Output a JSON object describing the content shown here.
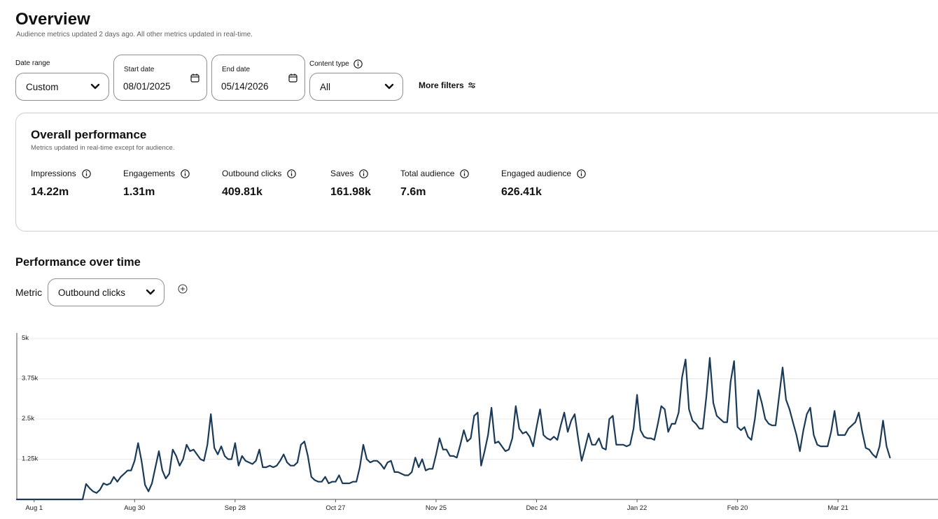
{
  "header": {
    "title": "Overview",
    "subtitle": "Audience metrics updated 2 days ago. All other metrics updated in real-time."
  },
  "filters": {
    "date_range_label": "Date range",
    "date_range_value": "Custom",
    "start_date_label": "Start date",
    "start_date_value": "08/01/2025",
    "end_date_label": "End date",
    "end_date_value": "05/14/2026",
    "content_type_label": "Content type",
    "content_type_value": "All",
    "more_filters_label": "More filters"
  },
  "overall": {
    "title": "Overall performance",
    "subtitle": "Metrics updated in real-time except for audience.",
    "metrics": [
      {
        "label": "Impressions",
        "value": "14.22m"
      },
      {
        "label": "Engagements",
        "value": "1.31m"
      },
      {
        "label": "Outbound clicks",
        "value": "409.81k"
      },
      {
        "label": "Saves",
        "value": "161.98k"
      },
      {
        "label": "Total audience",
        "value": "7.6m"
      },
      {
        "label": "Engaged audience",
        "value": "626.41k"
      }
    ]
  },
  "performance": {
    "title": "Performance over time",
    "metric_label": "Metric",
    "metric_value": "Outbound clicks"
  },
  "colors": {
    "line": "#1b3a57",
    "grid": "#e8e8e8",
    "axis": "#555555",
    "border": "#8e8e8e"
  },
  "icons": [
    "chevron-down-icon",
    "calendar-icon",
    "info-icon",
    "filter-sliders-icon",
    "add-circle-icon"
  ],
  "chart_data": {
    "type": "line",
    "series": [
      {
        "start": "2025-07-27",
        "values": [
          0,
          0,
          0,
          0,
          0,
          0,
          0,
          0,
          0,
          0,
          0,
          0,
          0,
          0,
          0,
          0,
          0,
          0,
          0,
          0,
          480,
          350,
          250,
          200,
          300,
          500,
          450,
          500,
          700,
          550,
          700,
          800,
          900,
          900,
          1200,
          1750,
          1200,
          450,
          250,
          500,
          1000,
          1500,
          900,
          650,
          800,
          1550,
          1350,
          1050,
          1250,
          1700,
          1500,
          1550,
          1400,
          1250,
          1200,
          1700,
          2650,
          1600,
          1400,
          1650,
          1350,
          1250,
          1250,
          1750,
          1050,
          1350,
          1200,
          1150,
          1100,
          1200,
          1550,
          1000,
          1000,
          1050,
          1000,
          1050,
          1200,
          1400,
          1150,
          1050,
          1050,
          1150,
          1700,
          1800,
          1350,
          700,
          600,
          550,
          550,
          700,
          500,
          550,
          550,
          750,
          500,
          500,
          500,
          550,
          550,
          1000,
          1700,
          1250,
          1150,
          1200,
          1200,
          1100,
          950,
          1150,
          1200,
          850,
          850,
          800,
          750,
          750,
          850,
          1300,
          1000,
          1250,
          900,
          950,
          950,
          1400,
          1900,
          1550,
          1550,
          1350,
          1350,
          1300,
          1700,
          2150,
          1800,
          1900,
          2600,
          2700,
          1050,
          1500,
          2000,
          2850,
          1750,
          1800,
          1650,
          1500,
          1550,
          1900,
          2900,
          2200,
          2050,
          2100,
          1950,
          1650,
          2250,
          2800,
          2000,
          1900,
          1850,
          1950,
          1850,
          2300,
          2700,
          2100,
          2450,
          2650,
          1900,
          1200,
          1600,
          2050,
          1700,
          1700,
          1900,
          1600,
          1550,
          2500,
          2600,
          1700,
          1700,
          1700,
          1650,
          1700,
          2200,
          3250,
          2150,
          1950,
          1900,
          1900,
          1850,
          2350,
          2900,
          2800,
          2100,
          2350,
          2350,
          2700,
          3800,
          4350,
          2800,
          2450,
          2350,
          2200,
          2200,
          3200,
          4400,
          3000,
          2600,
          2500,
          2400,
          2400,
          3650,
          4300,
          2250,
          2150,
          2250,
          1950,
          1850,
          2500,
          3400,
          3000,
          2500,
          2350,
          2300,
          2300,
          3200,
          4100,
          3100,
          2800,
          2400,
          2000,
          1500,
          2150,
          2650,
          2850,
          2000,
          1700,
          1650,
          1650,
          1650,
          2100,
          2750,
          2000,
          2000,
          2000,
          2200,
          2300,
          2400,
          2700,
          2100,
          1600,
          1550,
          1400,
          1300,
          1650,
          2450,
          1650,
          1300
        ]
      }
    ],
    "x_ticks": [
      "Aug 1",
      "Aug 30",
      "Sep 28",
      "Oct 27",
      "Nov 25",
      "Dec 24",
      "Jan 22",
      "Feb 20",
      "Mar 21"
    ],
    "y_ticks": [
      "5k",
      "3.75k",
      "2.5k",
      "1.25k"
    ],
    "ylim": [
      0,
      5000
    ],
    "grid": true
  }
}
